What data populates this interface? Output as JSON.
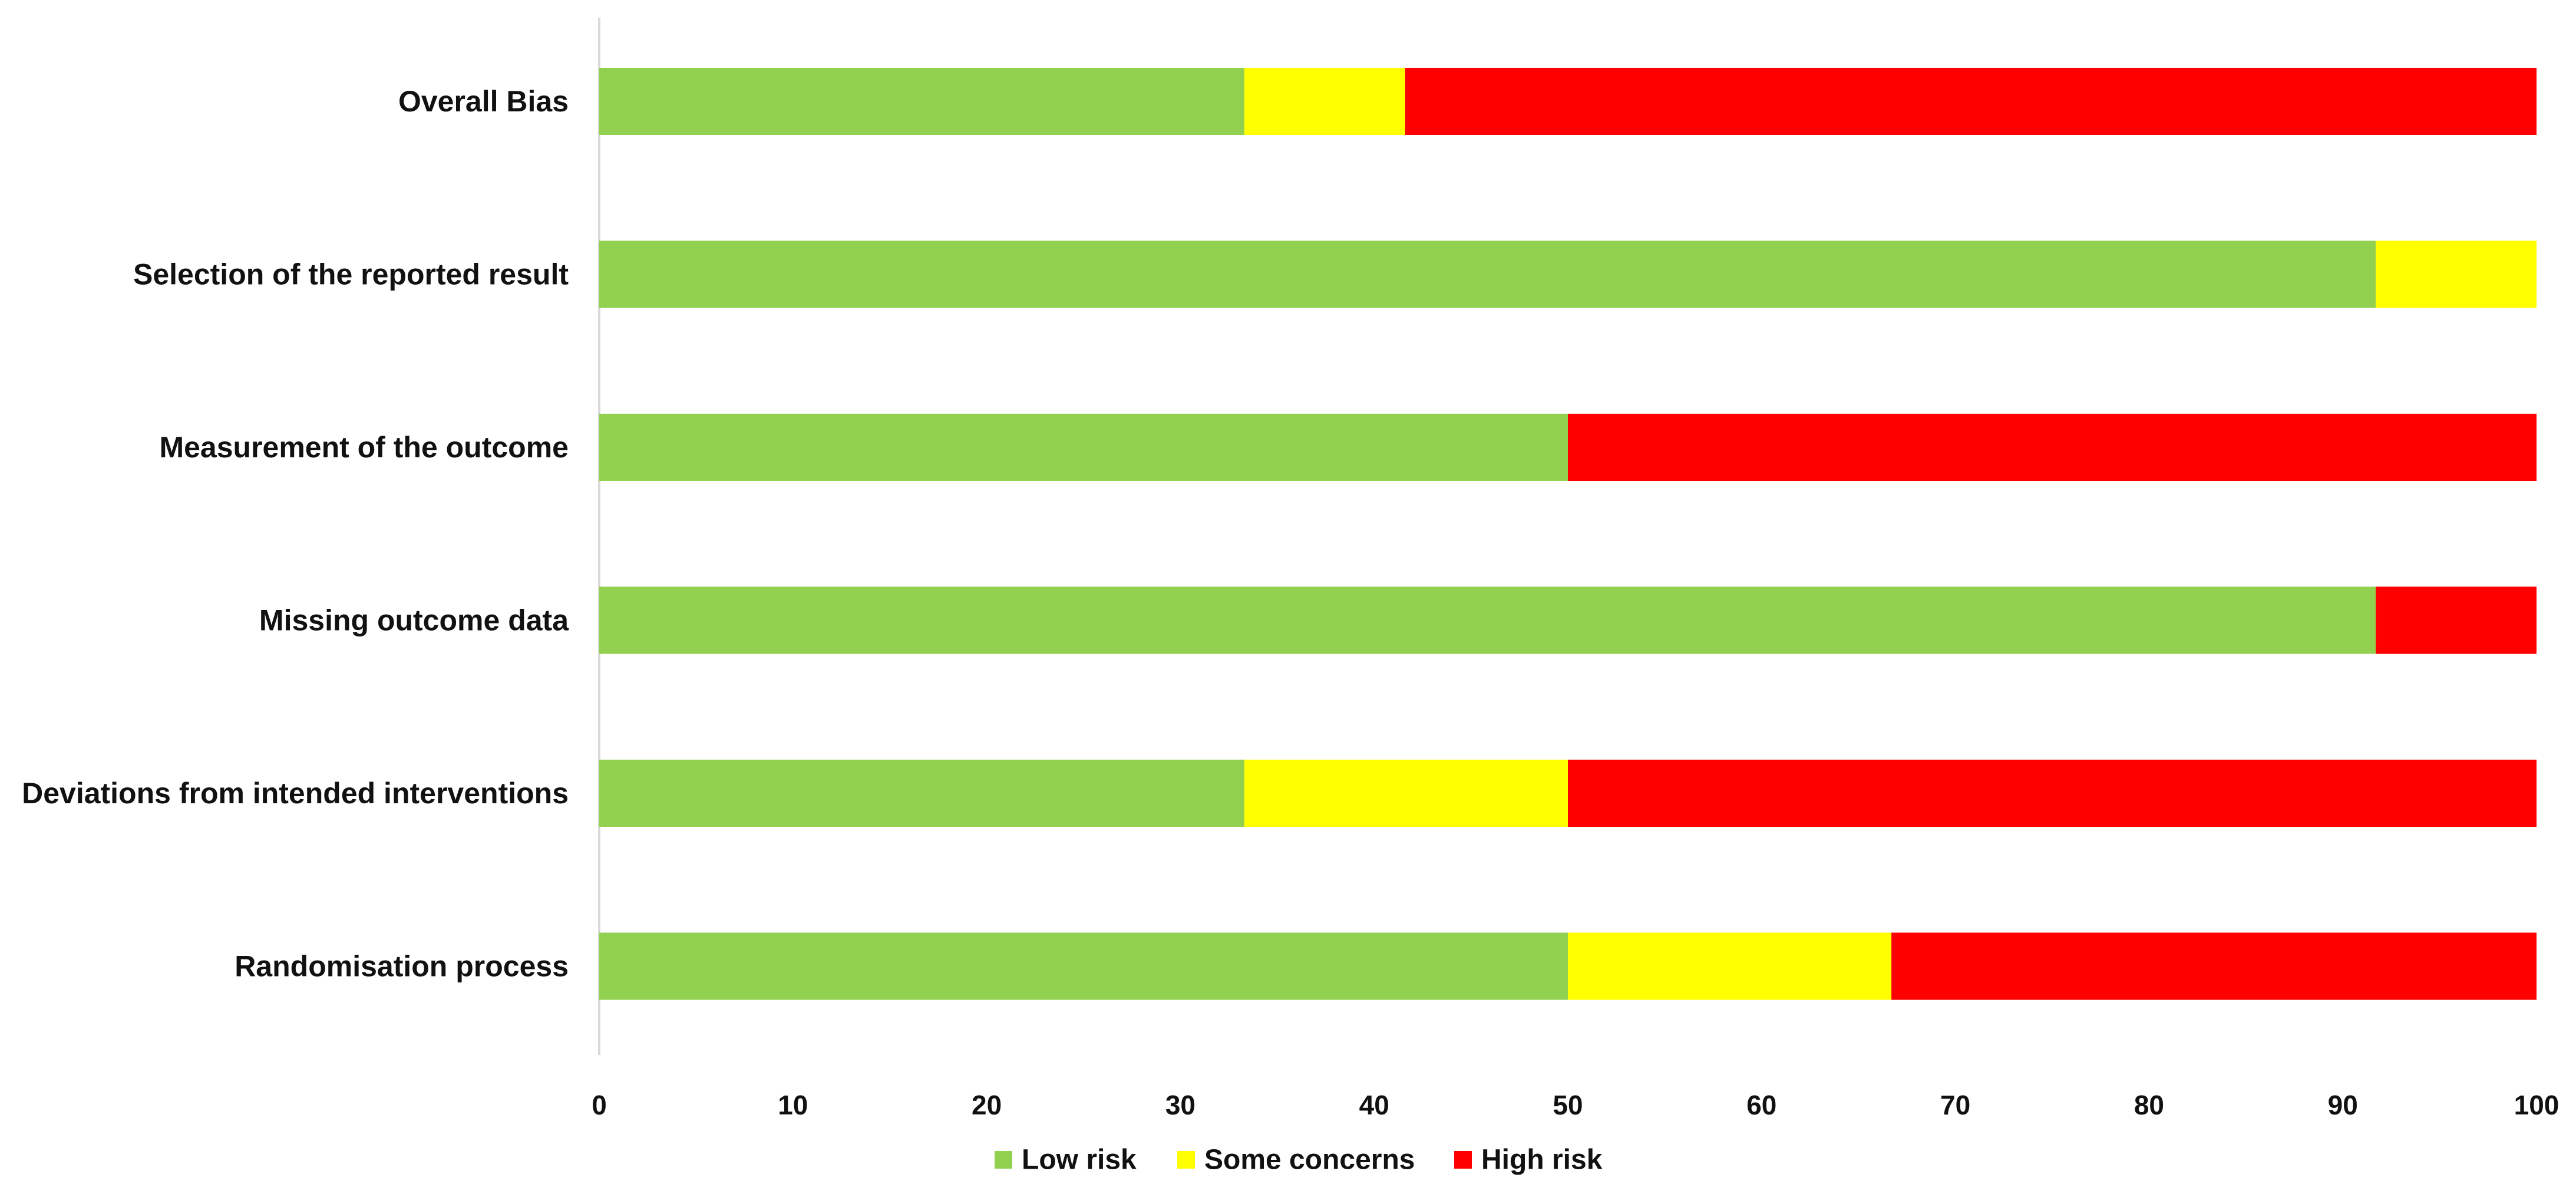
{
  "chart_data": {
    "type": "bar",
    "orientation": "horizontal",
    "stacked": true,
    "categories": [
      "Overall Bias",
      "Selection of the reported result",
      "Measurement of the outcome",
      "Missing outcome data",
      "Deviations from intended interventions",
      "Randomisation process"
    ],
    "series": [
      {
        "name": "Low risk",
        "color": "#92D050",
        "values": [
          33.3,
          91.7,
          50,
          91.7,
          33.3,
          50
        ]
      },
      {
        "name": "Some concerns",
        "color": "#FFFF00",
        "values": [
          8.3,
          8.3,
          0,
          0,
          16.7,
          16.7
        ]
      },
      {
        "name": "High risk",
        "color": "#FF0000",
        "values": [
          58.4,
          0,
          50,
          8.3,
          50,
          33.3
        ]
      }
    ],
    "xlim": [
      0,
      100
    ],
    "x_ticks": [
      "0",
      "10",
      "20",
      "30",
      "40",
      "50",
      "60",
      "70",
      "80",
      "90",
      "100"
    ],
    "title": "",
    "xlabel": "",
    "ylabel": "",
    "grid": false,
    "legend_position": "bottom"
  }
}
